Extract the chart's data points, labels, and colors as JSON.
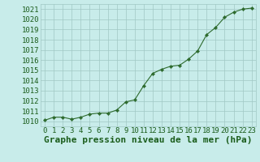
{
  "x": [
    0,
    1,
    2,
    3,
    4,
    5,
    6,
    7,
    8,
    9,
    10,
    11,
    12,
    13,
    14,
    15,
    16,
    17,
    18,
    19,
    20,
    21,
    22,
    23
  ],
  "y": [
    1010.1,
    1010.4,
    1010.4,
    1010.2,
    1010.4,
    1010.7,
    1010.8,
    1010.8,
    1011.1,
    1011.9,
    1012.1,
    1013.5,
    1014.7,
    1015.1,
    1015.4,
    1015.5,
    1016.1,
    1016.9,
    1018.5,
    1019.2,
    1020.2,
    1020.7,
    1021.0,
    1021.1
  ],
  "ylim": [
    1009.5,
    1021.5
  ],
  "yticks": [
    1010,
    1011,
    1012,
    1013,
    1014,
    1015,
    1016,
    1017,
    1018,
    1019,
    1020,
    1021
  ],
  "xticks": [
    0,
    1,
    2,
    3,
    4,
    5,
    6,
    7,
    8,
    9,
    10,
    11,
    12,
    13,
    14,
    15,
    16,
    17,
    18,
    19,
    20,
    21,
    22,
    23
  ],
  "line_color": "#2d6a2d",
  "marker_color": "#2d6a2d",
  "bg_color": "#c8ecea",
  "grid_color": "#a0c8c4",
  "xlabel": "Graphe pression niveau de la mer (hPa)",
  "xlabel_color": "#1a5c1a",
  "tick_color": "#1a5c1a",
  "tick_fontsize": 6.5,
  "xlabel_fontsize": 8
}
